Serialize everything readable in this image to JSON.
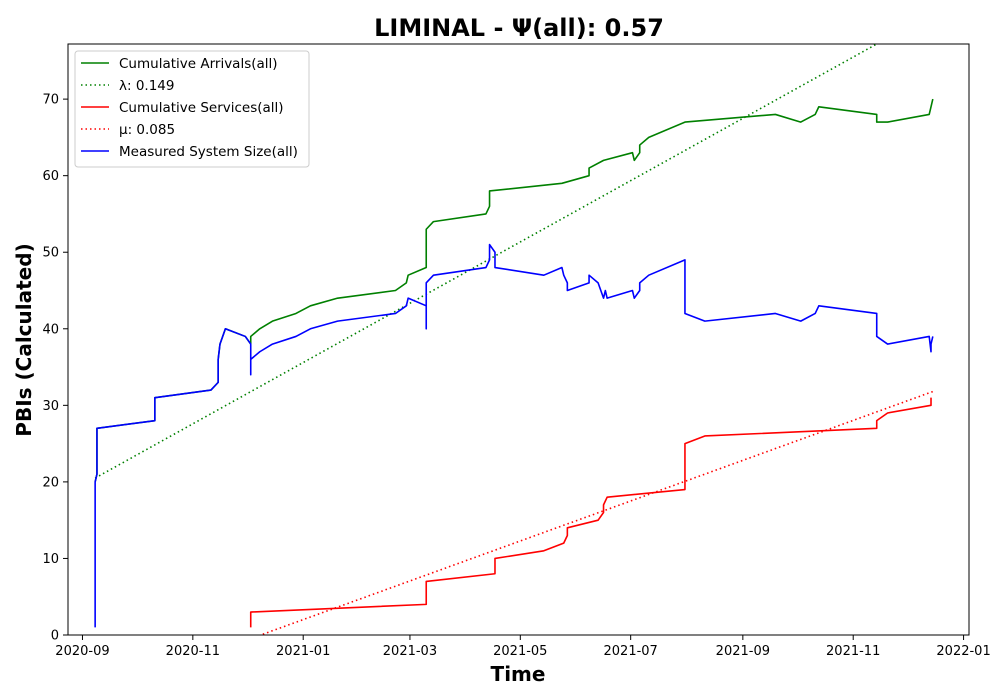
{
  "chart_data": {
    "type": "line",
    "title": "LIMINAL -  Ψ(all): 0.57",
    "xlabel": "Time",
    "ylabel": "PBIs (Calculated)",
    "xlim": [
      "2020-08-24",
      "2022-01-04"
    ],
    "ylim": [
      0,
      77.2
    ],
    "x_ticks": [
      "2020-09",
      "2020-11",
      "2021-01",
      "2021-03",
      "2021-05",
      "2021-07",
      "2021-09",
      "2021-11",
      "2022-01"
    ],
    "x_tick_dates": [
      "2020-09-01",
      "2020-11-01",
      "2021-01-01",
      "2021-03-01",
      "2021-05-01",
      "2021-07-01",
      "2021-09-01",
      "2021-11-01",
      "2022-01-01"
    ],
    "y_ticks": [
      0,
      10,
      20,
      30,
      40,
      50,
      60,
      70
    ],
    "grid": false,
    "legend_position": "top-left",
    "series": [
      {
        "name": "Cumulative Arrivals(all)",
        "color": "#008000",
        "style": "solid",
        "points": [
          [
            "2020-09-08",
            20
          ],
          [
            "2020-09-09",
            21
          ],
          [
            "2020-09-09",
            27
          ],
          [
            "2020-10-11",
            28
          ],
          [
            "2020-10-11",
            31
          ],
          [
            "2020-11-11",
            32
          ],
          [
            "2020-11-15",
            33
          ],
          [
            "2020-11-15",
            36
          ],
          [
            "2020-11-16",
            38
          ],
          [
            "2020-11-19",
            40
          ],
          [
            "2020-11-30",
            39
          ],
          [
            "2020-12-03",
            38
          ],
          [
            "2020-12-03",
            39
          ],
          [
            "2020-12-08",
            40
          ],
          [
            "2020-12-15",
            41
          ],
          [
            "2020-12-28",
            42
          ],
          [
            "2021-01-05",
            43
          ],
          [
            "2021-01-20",
            44
          ],
          [
            "2021-02-21",
            45
          ],
          [
            "2021-02-27",
            46
          ],
          [
            "2021-02-28",
            47
          ],
          [
            "2021-03-10",
            48
          ],
          [
            "2021-03-10",
            53
          ],
          [
            "2021-03-14",
            54
          ],
          [
            "2021-04-12",
            55
          ],
          [
            "2021-04-14",
            56
          ],
          [
            "2021-04-14",
            58
          ],
          [
            "2021-05-24",
            59
          ],
          [
            "2021-06-08",
            60
          ],
          [
            "2021-06-08",
            61
          ],
          [
            "2021-06-16",
            62
          ],
          [
            "2021-07-02",
            63
          ],
          [
            "2021-07-03",
            62
          ],
          [
            "2021-07-06",
            63
          ],
          [
            "2021-07-06",
            64
          ],
          [
            "2021-07-11",
            65
          ],
          [
            "2021-07-31",
            67
          ],
          [
            "2021-09-19",
            68
          ],
          [
            "2021-10-03",
            67
          ],
          [
            "2021-10-11",
            68
          ],
          [
            "2021-10-13",
            69
          ],
          [
            "2021-11-14",
            68
          ],
          [
            "2021-11-14",
            67
          ],
          [
            "2021-11-20",
            67
          ],
          [
            "2021-12-13",
            68
          ],
          [
            "2021-12-14",
            69
          ],
          [
            "2021-12-15",
            70
          ]
        ]
      },
      {
        "name": "λ: 0.149",
        "color": "#008000",
        "style": "dotted",
        "points": [
          [
            "2020-09-08",
            20.5
          ],
          [
            "2021-11-14",
            77.2
          ]
        ]
      },
      {
        "name": "Cumulative Services(all)",
        "color": "#ff0000",
        "style": "solid",
        "points": [
          [
            "2020-12-03",
            1
          ],
          [
            "2020-12-03",
            3
          ],
          [
            "2021-03-10",
            4
          ],
          [
            "2021-03-10",
            7
          ],
          [
            "2021-04-17",
            8
          ],
          [
            "2021-04-17",
            10
          ],
          [
            "2021-05-14",
            11
          ],
          [
            "2021-05-25",
            12
          ],
          [
            "2021-05-27",
            13
          ],
          [
            "2021-05-27",
            14
          ],
          [
            "2021-06-13",
            15
          ],
          [
            "2021-06-16",
            16
          ],
          [
            "2021-06-16",
            17
          ],
          [
            "2021-06-18",
            18
          ],
          [
            "2021-07-31",
            19
          ],
          [
            "2021-07-31",
            25
          ],
          [
            "2021-08-11",
            26
          ],
          [
            "2021-11-14",
            27
          ],
          [
            "2021-11-14",
            28
          ],
          [
            "2021-11-20",
            29
          ],
          [
            "2021-12-14",
            30
          ],
          [
            "2021-12-14",
            31
          ]
        ]
      },
      {
        "name": "μ: 0.085",
        "color": "#ff0000",
        "style": "dotted",
        "points": [
          [
            "2020-12-05",
            -0.3
          ],
          [
            "2021-12-15",
            31.8
          ]
        ]
      },
      {
        "name": "Measured System Size(all)",
        "color": "#0000ff",
        "style": "solid",
        "points": [
          [
            "2020-09-08",
            1
          ],
          [
            "2020-09-08",
            20
          ],
          [
            "2020-09-09",
            21
          ],
          [
            "2020-09-09",
            27
          ],
          [
            "2020-10-11",
            28
          ],
          [
            "2020-10-11",
            31
          ],
          [
            "2020-11-11",
            32
          ],
          [
            "2020-11-15",
            33
          ],
          [
            "2020-11-15",
            36
          ],
          [
            "2020-11-16",
            38
          ],
          [
            "2020-11-19",
            40
          ],
          [
            "2020-11-30",
            39
          ],
          [
            "2020-12-03",
            38
          ],
          [
            "2020-12-03",
            34
          ],
          [
            "2020-12-03",
            36
          ],
          [
            "2020-12-08",
            37
          ],
          [
            "2020-12-15",
            38
          ],
          [
            "2020-12-28",
            39
          ],
          [
            "2021-01-05",
            40
          ],
          [
            "2021-01-20",
            41
          ],
          [
            "2021-02-21",
            42
          ],
          [
            "2021-02-27",
            43
          ],
          [
            "2021-02-28",
            44
          ],
          [
            "2021-03-10",
            43
          ],
          [
            "2021-03-10",
            40
          ],
          [
            "2021-03-10",
            46
          ],
          [
            "2021-03-14",
            47
          ],
          [
            "2021-04-12",
            48
          ],
          [
            "2021-04-14",
            49
          ],
          [
            "2021-04-14",
            51
          ],
          [
            "2021-04-17",
            50
          ],
          [
            "2021-04-17",
            48
          ],
          [
            "2021-05-14",
            47
          ],
          [
            "2021-05-24",
            48
          ],
          [
            "2021-05-25",
            47
          ],
          [
            "2021-05-27",
            46
          ],
          [
            "2021-05-27",
            45
          ],
          [
            "2021-06-08",
            46
          ],
          [
            "2021-06-08",
            47
          ],
          [
            "2021-06-13",
            46
          ],
          [
            "2021-06-16",
            44
          ],
          [
            "2021-06-17",
            45
          ],
          [
            "2021-06-18",
            44
          ],
          [
            "2021-07-02",
            45
          ],
          [
            "2021-07-03",
            44
          ],
          [
            "2021-07-06",
            45
          ],
          [
            "2021-07-06",
            46
          ],
          [
            "2021-07-11",
            47
          ],
          [
            "2021-07-31",
            49
          ],
          [
            "2021-07-31",
            42
          ],
          [
            "2021-08-11",
            41
          ],
          [
            "2021-09-19",
            42
          ],
          [
            "2021-10-03",
            41
          ],
          [
            "2021-10-11",
            42
          ],
          [
            "2021-10-13",
            43
          ],
          [
            "2021-11-14",
            42
          ],
          [
            "2021-11-14",
            39
          ],
          [
            "2021-11-20",
            38
          ],
          [
            "2021-12-13",
            39
          ],
          [
            "2021-12-14",
            37
          ],
          [
            "2021-12-14",
            38
          ],
          [
            "2021-12-15",
            39
          ]
        ]
      }
    ]
  }
}
